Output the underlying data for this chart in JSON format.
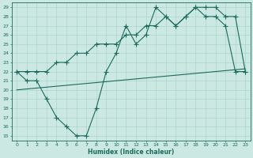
{
  "xlabel": "Humidex (Indice chaleur)",
  "xlim": [
    -0.5,
    23.5
  ],
  "ylim": [
    14.5,
    29.5
  ],
  "xticks": [
    0,
    1,
    2,
    3,
    4,
    5,
    6,
    7,
    8,
    9,
    10,
    11,
    12,
    13,
    14,
    15,
    16,
    17,
    18,
    19,
    20,
    21,
    22,
    23
  ],
  "yticks": [
    15,
    16,
    17,
    18,
    19,
    20,
    21,
    22,
    23,
    24,
    25,
    26,
    27,
    28,
    29
  ],
  "bg_color": "#cce8e2",
  "line_color": "#1a6b5e",
  "grid_color": "#aad4cc",
  "line1_x": [
    0,
    1,
    2,
    3,
    4,
    5,
    6,
    7,
    8,
    9,
    10,
    11,
    12,
    13,
    14,
    15,
    16,
    17,
    18,
    19,
    20,
    21,
    22,
    23
  ],
  "line1_y": [
    22,
    21,
    21,
    19,
    17,
    16,
    15,
    15,
    18,
    22,
    24,
    27,
    25,
    26,
    29,
    28,
    27,
    28,
    29,
    28,
    28,
    27,
    22,
    22
  ],
  "line2_x": [
    0,
    1,
    2,
    3,
    4,
    5,
    6,
    7,
    8,
    9,
    10,
    11,
    12,
    13,
    14,
    15,
    16,
    17,
    18,
    19,
    20,
    21,
    22,
    23
  ],
  "line2_y": [
    22,
    22,
    22,
    22,
    23,
    23,
    24,
    24,
    25,
    25,
    25,
    26,
    26,
    27,
    27,
    28,
    27,
    28,
    29,
    29,
    29,
    28,
    28,
    22
  ],
  "line3_x": [
    0,
    23
  ],
  "line3_y": [
    20.0,
    22.3
  ]
}
